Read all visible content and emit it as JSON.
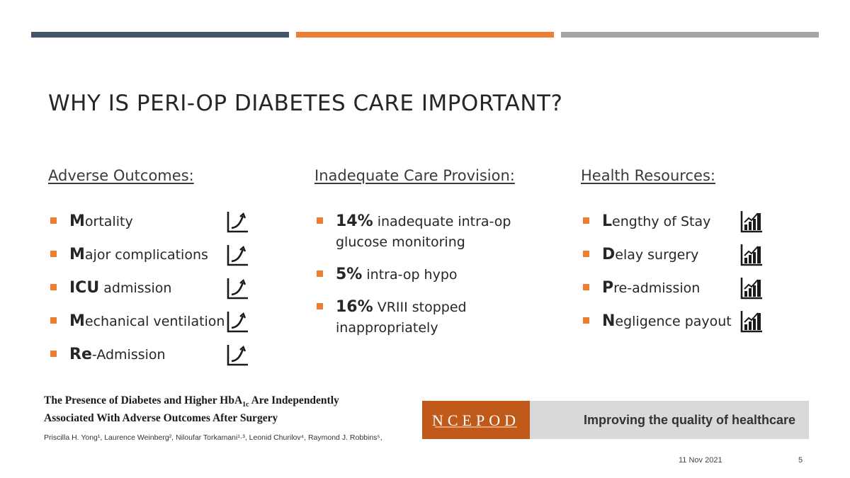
{
  "slide": {
    "title": "WHY IS PERI-OP DIABETES CARE IMPORTANT?",
    "accent_colors": [
      "#44546a",
      "#ed7d31",
      "#a5a5a5"
    ]
  },
  "columns": {
    "adverse": {
      "heading": "Adverse Outcomes:",
      "icon": "rising-line-chart-icon",
      "items": [
        {
          "bold": "M",
          "rest": "ortality"
        },
        {
          "bold": "M",
          "rest": "ajor complications"
        },
        {
          "bold": "ICU",
          "rest": " admission"
        },
        {
          "bold": "M",
          "rest": "echanical ventilation"
        },
        {
          "bold": "Re",
          "rest": "-Admission"
        }
      ]
    },
    "inadequate": {
      "heading": "Inadequate Care Provision:",
      "items": [
        {
          "bold": "14%",
          "rest": " inadequate intra-op glucose monitoring"
        },
        {
          "bold": "5%",
          "rest": " intra-op hypo"
        },
        {
          "bold": "16%",
          "rest": " VRIII stopped inappropriately"
        }
      ]
    },
    "resources": {
      "heading": "Health Resources:",
      "icon": "bar-chart-increase-icon",
      "items": [
        {
          "bold": "L",
          "rest": "engthy of Stay"
        },
        {
          "bold": "D",
          "rest": "elay surgery"
        },
        {
          "bold": "P",
          "rest": "re-admission"
        },
        {
          "bold": "N",
          "rest": "egligence payout"
        }
      ]
    }
  },
  "paper": {
    "title_line1": "The Presence of Diabetes and Higher HbA",
    "title_sub": "1c",
    "title_line1_end": " Are Independently",
    "title_line2": "Associated With Adverse Outcomes After Surgery",
    "authors": "Priscilla H. Yong¹, Laurence Weinberg², Niloufar Torkamani¹·³, Leonid Churilov⁴, Raymond J. Robbins⁵,"
  },
  "banner": {
    "logo_text": "NCEPOD",
    "tagline": "Improving the quality of healthcare"
  },
  "footer": {
    "date": "11 Nov 2021",
    "page": "5"
  }
}
